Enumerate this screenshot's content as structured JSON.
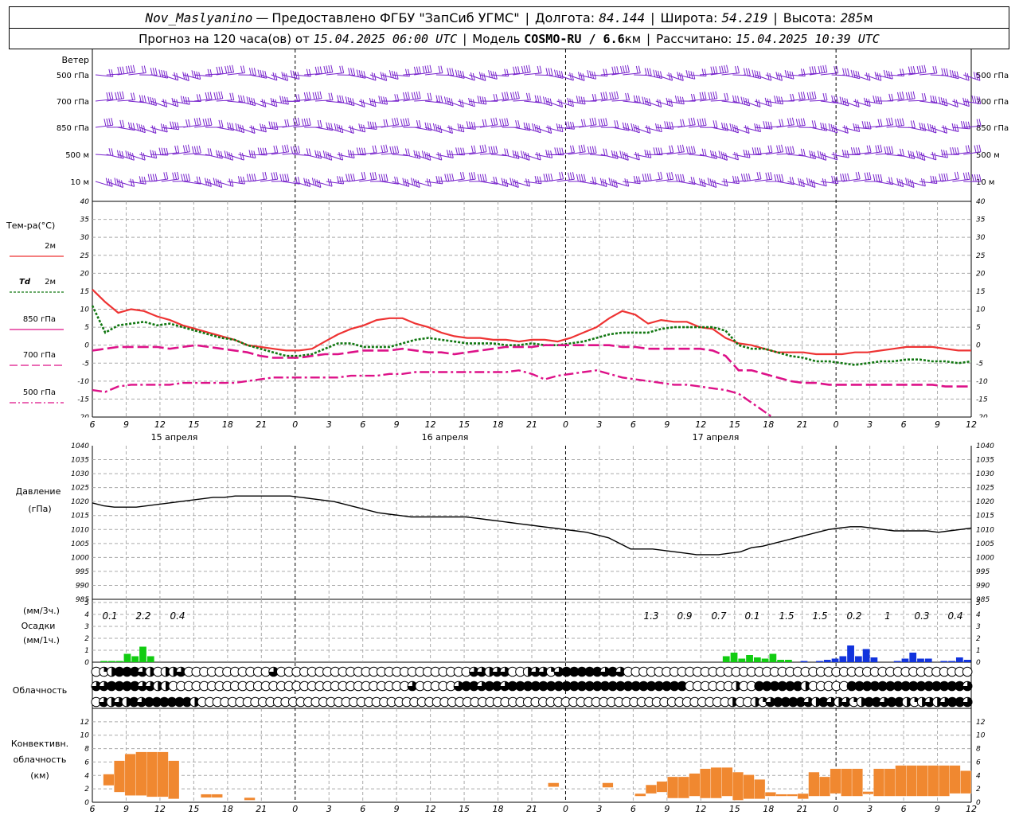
{
  "header": {
    "station": "Nov_Maslyanino",
    "provider": "Предоставлено ФГБУ \"ЗапСиб УГМС\"",
    "lon_label": "Долгота:",
    "lon_value": "84.144",
    "lat_label": "Широта:",
    "lat_value": "54.219",
    "alt_label": "Высота:",
    "alt_value": "285",
    "alt_unit": "м",
    "forecast_label": "Прогноз на 120 часа(ов) от",
    "forecast_start": "15.04.2025 06:00 UTC",
    "model_label": "Модель",
    "model_name": "COSMO-RU / 6.6",
    "model_unit": "км",
    "calc_label": "Рассчитано:",
    "calc_time": "15.04.2025 10:39 UTC",
    "dash": "—",
    "sep": "|"
  },
  "colors": {
    "t2m": "#ee3333",
    "td2m": "#117711",
    "t850": "#dd1188",
    "wind": "#7722cc",
    "precip_green": "#11cc11",
    "precip_blue": "#1133dd",
    "conv": "#f08830",
    "grid": "#aaaaaa"
  },
  "chart_data": {
    "type": "meteogram",
    "x_tick_labels": [
      "6",
      "9",
      "12",
      "15",
      "18",
      "21",
      "0",
      "3",
      "6",
      "9",
      "12",
      "15",
      "18",
      "21",
      "0",
      "3",
      "6",
      "9",
      "12",
      "15",
      "18",
      "21",
      "0",
      "3",
      "6",
      "9",
      "12"
    ],
    "day_labels": [
      "15 апреля",
      "16 апреля",
      "17 апреля"
    ],
    "wind": {
      "title": "Ветер",
      "levels": [
        "500 гПа",
        "700 гПа",
        "850 гПа",
        "500 м",
        "10 м"
      ]
    },
    "temperature": {
      "title": "Тем-ра(°C)",
      "ylim": [
        -20,
        40
      ],
      "y_ticks": [
        "40",
        "35",
        "30",
        "25",
        "20",
        "15",
        "10",
        "5",
        "0",
        "-5",
        "-10",
        "-15",
        "-20"
      ],
      "legend": {
        "t2m_label": "2м",
        "td_prefix": "Td",
        "td_label": "2м",
        "t850_label": "850 гПа",
        "t700_label": "700 гПа",
        "t500_label": "500 гПа"
      },
      "series": [
        {
          "name": "2м",
          "values": [
            15.5,
            12,
            9,
            10,
            9.5,
            8,
            7,
            5.5,
            4.5,
            3.5,
            2.5,
            1.5,
            0,
            -0.5,
            -1,
            -1.5,
            -1.5,
            -1,
            1,
            3,
            4.5,
            5.5,
            7,
            7.5,
            7.5,
            6,
            5,
            3.5,
            2.5,
            2,
            2,
            1.5,
            1.5,
            1,
            1.5,
            1.5,
            1,
            2,
            3.5,
            5,
            7.5,
            9.5,
            8.5,
            6,
            7,
            6.5,
            6.5,
            5,
            4.5,
            2,
            0.5,
            0,
            -1,
            -2,
            -2,
            -2,
            -2.5,
            -2.5,
            -2.5,
            -2,
            -2,
            -1.5,
            -1,
            -0.5,
            -0.5,
            -0.5,
            -1,
            -1.5,
            -1.5
          ]
        },
        {
          "name": "Td 2м",
          "values": [
            11,
            3.5,
            5.5,
            6,
            6.5,
            5.5,
            6,
            5,
            4,
            3,
            2,
            1.5,
            0,
            -1,
            -2,
            -3,
            -3,
            -2.5,
            -1,
            0.5,
            0.5,
            -0.5,
            -0.5,
            -0.5,
            0.5,
            1.5,
            2,
            1.5,
            1,
            0.5,
            0.5,
            0.5,
            0,
            0,
            0.5,
            0,
            0,
            0.5,
            1,
            2,
            3,
            3.5,
            3.5,
            3.5,
            4.5,
            5,
            5,
            5,
            5,
            4,
            0,
            -1,
            -1,
            -2,
            -3,
            -3.5,
            -4.5,
            -4.5,
            -5,
            -5.5,
            -5,
            -4.5,
            -4.5,
            -4,
            -4,
            -4.5,
            -4.5,
            -5,
            -4.5
          ]
        },
        {
          "name": "850 гПа",
          "values": [
            -1.5,
            -1,
            -0.5,
            -0.5,
            -0.5,
            -0.5,
            -1,
            -0.5,
            0,
            -0.5,
            -1,
            -1.5,
            -2,
            -3,
            -3.5,
            -3.5,
            -3.5,
            -3,
            -2.5,
            -2.5,
            -2,
            -1.5,
            -1.5,
            -1.5,
            -1,
            -1.5,
            -2,
            -2,
            -2.5,
            -2,
            -1.5,
            -1,
            -0.5,
            -0.5,
            -0.5,
            0,
            0,
            0,
            0,
            0,
            0,
            -0.5,
            -0.5,
            -1,
            -1,
            -1,
            -1,
            -1,
            -1.5,
            -3,
            -7,
            -7,
            -8,
            -9,
            -10,
            -10.5,
            -10.5,
            -11,
            -11,
            -11,
            -11,
            -11,
            -11,
            -11,
            -11,
            -11,
            -11.5,
            -11.5,
            -11.5
          ]
        },
        {
          "name": "700 гПа",
          "values": [
            -12.5,
            -13,
            -11.5,
            -11,
            -11,
            -11,
            -11,
            -10.5,
            -10.5,
            -10.5,
            -10.5,
            -10.5,
            -10,
            -9.5,
            -9,
            -9,
            -9,
            -9,
            -9,
            -9,
            -8.5,
            -8.5,
            -8.5,
            -8,
            -8,
            -7.5,
            -7.5,
            -7.5,
            -7.5,
            -7.5,
            -7.5,
            -7.5,
            -7.5,
            -7,
            -8,
            -9.5,
            -8.5,
            -8,
            -7.5,
            -7,
            -8,
            -9,
            -9.5,
            -10,
            -10.5,
            -11,
            -11,
            -11.5,
            -12,
            -12.5,
            -13.5,
            -16,
            -18.5,
            -21
          ]
        },
        {
          "name": "500 гПа",
          "values": []
        }
      ]
    },
    "pressure": {
      "title": "Давление",
      "unit": "(гПа)",
      "ylim": [
        985,
        1040
      ],
      "y_ticks": [
        "1040",
        "1035",
        "1030",
        "1025",
        "1020",
        "1015",
        "1010",
        "1005",
        "1000",
        "995",
        "990",
        "985"
      ],
      "values": [
        1019.5,
        1018.5,
        1018,
        1018,
        1018,
        1018.5,
        1019,
        1019.5,
        1020,
        1020.5,
        1021,
        1021.5,
        1021.5,
        1022,
        1022,
        1022,
        1022,
        1022,
        1022,
        1021.5,
        1021,
        1020.5,
        1020,
        1019,
        1018,
        1017,
        1016,
        1015.5,
        1015,
        1014.5,
        1014.5,
        1014.5,
        1014.5,
        1014.5,
        1014.5,
        1014,
        1013.5,
        1013,
        1012.5,
        1012,
        1011.5,
        1011,
        1010.5,
        1010,
        1009.5,
        1009,
        1008,
        1007,
        1005,
        1003,
        1003,
        1003,
        1002.5,
        1002,
        1001.5,
        1001,
        1001,
        1001,
        1001.5,
        1002,
        1003.5,
        1004,
        1005,
        1006,
        1007,
        1008,
        1009,
        1010,
        1010.5,
        1011,
        1011,
        1010.5,
        1010,
        1009.5,
        1009.5,
        1009.5,
        1009.5,
        1009,
        1009.5,
        1010,
        1010.5
      ]
    },
    "precipitation": {
      "title": "Осадки",
      "unit3h": "(мм/3ч.)",
      "unit1h": "(мм/1ч.)",
      "ylim": [
        0,
        5
      ],
      "y_ticks": [
        "5",
        "4",
        "3",
        "2",
        "1",
        "0"
      ],
      "totals_3h": [
        "0.1",
        "2.2",
        "0.4",
        "1.3",
        "0.9",
        "0.7",
        "0.1",
        "1.5",
        "1.5",
        "0.2",
        "1",
        "0.3",
        "0.4"
      ],
      "hourly": [
        0,
        0.1,
        0.1,
        0.1,
        0.7,
        0.5,
        1.3,
        0.5,
        0,
        0,
        0,
        0,
        0,
        0,
        0,
        0,
        0,
        0,
        0,
        0,
        0,
        0,
        0,
        0,
        0,
        0,
        0,
        0,
        0,
        0,
        0,
        0,
        0,
        0,
        0,
        0,
        0,
        0,
        0,
        0,
        0,
        0,
        0,
        0,
        0,
        0,
        0,
        0,
        0,
        0,
        0,
        0,
        0,
        0,
        0,
        0,
        0,
        0,
        0,
        0,
        0,
        0,
        0,
        0,
        0,
        0,
        0,
        0,
        0,
        0,
        0,
        0,
        0,
        0,
        0,
        0,
        0,
        0,
        0,
        0,
        0,
        0.5,
        0.8,
        0.3,
        0.6,
        0.4,
        0.3,
        0.7,
        0.2,
        0.2,
        0,
        0.1,
        0,
        0.1,
        0.2,
        0.3,
        0.5,
        1.4,
        0.5,
        1.1,
        0.4,
        0,
        0,
        0.1,
        0.3,
        0.8,
        0.3,
        0.3,
        0,
        0.1,
        0.1,
        0.4,
        0.2
      ]
    },
    "cloudiness": {
      "title": "Облачность",
      "rows": [
        [
          0,
          0.25,
          0.5,
          1,
          1,
          1,
          0.75,
          0.5,
          0,
          0.5,
          0.5,
          0.75,
          0,
          0,
          0,
          0,
          0,
          0,
          0,
          0,
          0,
          0,
          0,
          0.75,
          0,
          0,
          0,
          0,
          0,
          0,
          0,
          0,
          0,
          0,
          0,
          0,
          0,
          0,
          0,
          0,
          0,
          0,
          0,
          0,
          0,
          0,
          0,
          0,
          0,
          0.75,
          0.75,
          0.5,
          0.75,
          0.75,
          0,
          0,
          0.5,
          0.75,
          0.75,
          0.25,
          0.75,
          1,
          1,
          1,
          1,
          1,
          0.75,
          1,
          0.75,
          0,
          0,
          0,
          0,
          0,
          0,
          0,
          0,
          0,
          0,
          0,
          0,
          0,
          0,
          0,
          0,
          0,
          0,
          0,
          0,
          0,
          0,
          0,
          0,
          0,
          0,
          0,
          0,
          0,
          0,
          0,
          0,
          0,
          0,
          0,
          0,
          0,
          0,
          0,
          0,
          0,
          0,
          0,
          0,
          0
        ],
        [
          0.75,
          0.75,
          1,
          1,
          1,
          1,
          0.75,
          0.75,
          0.5,
          0.5,
          0,
          0,
          0,
          0,
          0,
          0,
          0,
          0,
          0,
          0,
          0,
          0,
          0,
          0,
          0,
          0,
          0,
          0,
          0,
          0,
          0,
          0,
          0,
          0,
          0,
          0,
          0,
          0,
          0,
          0,
          0,
          0.75,
          0,
          0,
          0,
          0,
          0,
          0.75,
          1,
          1,
          0.75,
          1,
          1,
          0.75,
          1,
          1,
          1,
          1,
          1,
          1,
          1,
          1,
          1,
          1,
          1,
          1,
          1,
          1,
          1,
          1,
          1,
          1,
          1,
          1,
          1,
          1,
          1,
          0,
          0,
          0,
          0,
          0,
          0,
          0.5,
          0,
          0,
          1,
          1,
          1,
          1,
          1,
          1,
          0.5,
          0,
          0,
          0,
          0,
          0,
          1,
          1,
          1,
          1,
          1,
          1,
          1,
          1,
          1,
          1,
          1,
          1,
          1,
          1,
          1,
          0.75
        ],
        [
          0,
          0.75,
          0.5,
          0.75,
          0.5,
          1,
          0.75,
          1,
          1,
          1,
          1,
          1,
          1,
          0.5,
          0,
          0,
          0,
          0,
          0,
          0,
          0,
          0,
          0,
          0,
          0,
          0,
          0,
          0,
          0,
          0,
          0,
          0,
          0,
          0,
          0,
          0,
          0,
          0,
          0,
          0,
          0,
          0,
          0,
          0,
          0,
          0,
          0,
          0,
          0,
          0,
          0,
          0,
          0,
          0,
          0,
          0,
          0,
          0,
          0,
          0,
          0,
          0,
          0,
          0,
          0,
          0,
          0,
          0,
          0,
          0,
          0,
          0,
          0,
          0,
          0,
          0,
          0,
          0,
          0,
          0,
          0,
          0,
          0,
          0,
          0.5,
          0,
          0,
          0.5,
          0.25,
          0.75,
          1,
          1,
          1,
          1,
          0.75,
          0.5,
          1,
          0.75,
          0.5,
          0.75,
          0.25,
          0.5,
          1,
          1,
          0.75,
          1,
          1,
          0.5,
          0.25,
          0.5,
          0.75,
          0.5,
          0.75,
          1,
          1,
          0.75
        ]
      ]
    },
    "convective": {
      "title_line1": "Конвективн.",
      "title_line2": "облачность",
      "unit": "(км)",
      "ylim": [
        0,
        14
      ],
      "y_ticks": [
        "12",
        "10",
        "8",
        "6",
        "4",
        "2",
        "0"
      ],
      "bars": [
        {
          "t": 1,
          "bot": 2.5,
          "top": 4.2
        },
        {
          "t": 2,
          "bot": 1.5,
          "top": 6.2
        },
        {
          "t": 3,
          "bot": 1,
          "top": 7.2
        },
        {
          "t": 4,
          "bot": 1,
          "top": 7.5
        },
        {
          "t": 5,
          "bot": 0.8,
          "top": 7.5
        },
        {
          "t": 6,
          "bot": 0.8,
          "top": 7.5
        },
        {
          "t": 7,
          "bot": 0.5,
          "top": 6.2
        },
        {
          "t": 10,
          "bot": 0.7,
          "top": 1.2
        },
        {
          "t": 11,
          "bot": 0.7,
          "top": 1.2
        },
        {
          "t": 14,
          "bot": 0.3,
          "top": 0.7
        },
        {
          "t": 42,
          "bot": 2.3,
          "top": 2.9
        },
        {
          "t": 47,
          "bot": 2.2,
          "top": 2.9
        },
        {
          "t": 50,
          "bot": 0.9,
          "top": 1.3
        },
        {
          "t": 51,
          "bot": 1.3,
          "top": 2.6
        },
        {
          "t": 52,
          "bot": 1.5,
          "top": 3.1
        },
        {
          "t": 53,
          "bot": 0.6,
          "top": 3.8
        },
        {
          "t": 54,
          "bot": 0.6,
          "top": 3.8
        },
        {
          "t": 55,
          "bot": 0.9,
          "top": 4.3
        },
        {
          "t": 56,
          "bot": 0.6,
          "top": 5.0
        },
        {
          "t": 57,
          "bot": 0.6,
          "top": 5.2
        },
        {
          "t": 58,
          "bot": 0.9,
          "top": 5.2
        },
        {
          "t": 59,
          "bot": 0.3,
          "top": 4.5
        },
        {
          "t": 60,
          "bot": 0.5,
          "top": 4.1
        },
        {
          "t": 61,
          "bot": 0.5,
          "top": 3.4
        },
        {
          "t": 62,
          "bot": 0.9,
          "top": 1.5
        },
        {
          "t": 63,
          "bot": 0.9,
          "top": 1.2
        },
        {
          "t": 64,
          "bot": 0.9,
          "top": 1.2
        },
        {
          "t": 65,
          "bot": 0.5,
          "top": 1.3
        },
        {
          "t": 66,
          "bot": 0.9,
          "top": 4.5
        },
        {
          "t": 67,
          "bot": 0.9,
          "top": 3.8
        },
        {
          "t": 68,
          "bot": 1.3,
          "top": 5.0
        },
        {
          "t": 69,
          "bot": 0.9,
          "top": 5.0
        },
        {
          "t": 70,
          "bot": 0.9,
          "top": 5.0
        },
        {
          "t": 71,
          "bot": 1.2,
          "top": 1.6
        },
        {
          "t": 72,
          "bot": 0.9,
          "top": 5.0
        },
        {
          "t": 73,
          "bot": 0.9,
          "top": 5.0
        },
        {
          "t": 74,
          "bot": 0.9,
          "top": 5.5
        },
        {
          "t": 75,
          "bot": 0.9,
          "top": 5.5
        },
        {
          "t": 76,
          "bot": 0.9,
          "top": 5.5
        },
        {
          "t": 77,
          "bot": 0.9,
          "top": 5.5
        },
        {
          "t": 78,
          "bot": 0.9,
          "top": 5.5
        },
        {
          "t": 79,
          "bot": 1.3,
          "top": 5.5
        },
        {
          "t": 80,
          "bot": 1.3,
          "top": 4.7
        }
      ]
    }
  }
}
